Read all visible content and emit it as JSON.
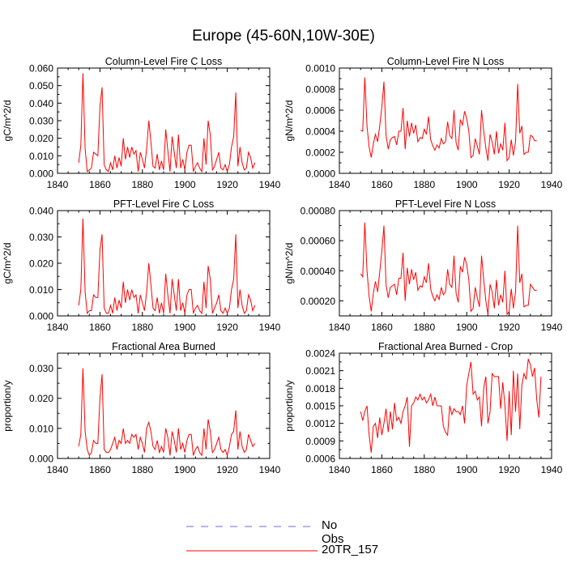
{
  "main_title": "Europe (45-60N,10W-30E)",
  "legend": {
    "entries": [
      {
        "label": "No Obs",
        "color": "#6a6ae0",
        "style": "dashed"
      },
      {
        "label": "20TR_157",
        "color": "#ff0000",
        "style": "solid"
      }
    ]
  },
  "colors": {
    "series": "#ff0000",
    "axis": "#000000",
    "obs": "#6a6ae0"
  },
  "chart_data": [
    {
      "type": "line",
      "title": "Column-Level Fire C Loss",
      "ylabel": "gC/m^2/d",
      "xlim": [
        1840,
        1940
      ],
      "ylim": [
        0,
        0.06
      ],
      "xticks": [
        1840,
        1860,
        1880,
        1900,
        1920,
        1940
      ],
      "xtick_labels": [
        "1840",
        "1860",
        "1880",
        "1900",
        "1920",
        "1940"
      ],
      "yticks": [
        0,
        0.01,
        0.02,
        0.03,
        0.04,
        0.05,
        0.06
      ],
      "ytick_labels": [
        "0.000",
        "0.010",
        "0.020",
        "0.030",
        "0.040",
        "0.050",
        "0.060"
      ],
      "series": [
        {
          "name": "20TR_157",
          "x0": 1850,
          "values": [
            0.006,
            0.016,
            0.057,
            0.014,
            0.001,
            0.002,
            0.003,
            0.012,
            0.011,
            0.01,
            0.038,
            0.049,
            0.005,
            0.002,
            0.001,
            0.006,
            0.002,
            0.01,
            0.003,
            0.009,
            0.004,
            0.02,
            0.008,
            0.015,
            0.009,
            0.015,
            0.011,
            0.013,
            0.001,
            0.012,
            0.008,
            0.003,
            0.014,
            0.03,
            0.018,
            0.004,
            0.003,
            0.011,
            0.002,
            0.007,
            0.002,
            0.025,
            0.013,
            0.001,
            0.021,
            0.012,
            0.003,
            0.022,
            0.003,
            0.008,
            0.002,
            0.012,
            0.016,
            0.016,
            0.001,
            0.004,
            0.006,
            0.003,
            0.001,
            0.02,
            0.005,
            0.03,
            0.022,
            0.002,
            0.004,
            0.008,
            0.012,
            0.003,
            0.002,
            0.005,
            0.001,
            0.005,
            0.015,
            0.021,
            0.046,
            0.004,
            0.015,
            0.006,
            0.002,
            0.003,
            0.012,
            0.009,
            0.003,
            0.006
          ]
        }
      ]
    },
    {
      "type": "line",
      "title": "Column-Level Fire N Loss",
      "ylabel": "gN/m^2/d",
      "xlim": [
        1840,
        1940
      ],
      "ylim": [
        0,
        0.001
      ],
      "xticks": [
        1840,
        1860,
        1880,
        1900,
        1920,
        1940
      ],
      "xtick_labels": [
        "1840",
        "1860",
        "1880",
        "1900",
        "1920",
        "1940"
      ],
      "yticks": [
        0,
        0.0002,
        0.0004,
        0.0006,
        0.0008,
        0.001
      ],
      "ytick_labels": [
        "0.0000",
        "0.0002",
        "0.0004",
        "0.0006",
        "0.0008",
        "0.0010"
      ],
      "series": [
        {
          "name": "20TR_157",
          "x0": 1850,
          "values": [
            0.00041,
            0.0004,
            0.00091,
            0.00045,
            0.00025,
            0.00015,
            0.00028,
            0.00037,
            0.0003,
            0.00045,
            0.00063,
            0.00087,
            0.00036,
            0.00023,
            0.00032,
            0.00034,
            0.00035,
            0.00027,
            0.0004,
            0.0004,
            0.00062,
            0.00023,
            0.0005,
            0.00035,
            0.00048,
            0.00038,
            0.00046,
            0.0003,
            0.00034,
            0.00033,
            0.00042,
            0.00037,
            0.00054,
            0.00032,
            0.00026,
            0.00022,
            0.00027,
            0.00024,
            0.00033,
            0.00028,
            0.0003,
            0.00049,
            0.00036,
            0.00033,
            0.0006,
            0.00029,
            0.00022,
            0.00051,
            0.00046,
            0.00059,
            0.00052,
            0.0004,
            0.00015,
            0.00017,
            0.00033,
            0.00026,
            0.00018,
            0.0006,
            0.0004,
            0.00024,
            0.00012,
            0.00037,
            0.0003,
            0.00018,
            0.0004,
            0.00019,
            0.00028,
            0.00022,
            0.00048,
            0.00012,
            0.00015,
            0.00032,
            0.00017,
            0.0003,
            0.00085,
            0.00038,
            0.00045,
            0.00018,
            0.0002,
            0.0002,
            0.00036,
            0.00035,
            0.00031,
            0.00031
          ]
        }
      ]
    },
    {
      "type": "line",
      "title": "PFT-Level Fire C Loss",
      "ylabel": "gC/m^2/d",
      "xlim": [
        1840,
        1940
      ],
      "ylim": [
        0,
        0.04
      ],
      "xticks": [
        1840,
        1860,
        1880,
        1900,
        1920,
        1940
      ],
      "xtick_labels": [
        "1840",
        "1860",
        "1880",
        "1900",
        "1920",
        "1940"
      ],
      "yticks": [
        0,
        0.01,
        0.02,
        0.03,
        0.04
      ],
      "ytick_labels": [
        "0.000",
        "0.010",
        "0.020",
        "0.030",
        "0.040"
      ],
      "series": [
        {
          "name": "20TR_157",
          "x0": 1850,
          "values": [
            0.004,
            0.01,
            0.037,
            0.009,
            0.001,
            0.002,
            0.002,
            0.008,
            0.007,
            0.007,
            0.025,
            0.031,
            0.003,
            0.001,
            0.001,
            0.004,
            0.001,
            0.007,
            0.002,
            0.006,
            0.003,
            0.013,
            0.005,
            0.01,
            0.006,
            0.01,
            0.007,
            0.008,
            0.001,
            0.008,
            0.005,
            0.002,
            0.009,
            0.02,
            0.012,
            0.003,
            0.002,
            0.007,
            0.001,
            0.005,
            0.001,
            0.016,
            0.008,
            0.001,
            0.014,
            0.008,
            0.002,
            0.014,
            0.002,
            0.005,
            0.001,
            0.008,
            0.01,
            0.01,
            0.001,
            0.003,
            0.004,
            0.002,
            0.001,
            0.013,
            0.003,
            0.019,
            0.014,
            0.001,
            0.003,
            0.005,
            0.008,
            0.002,
            0.001,
            0.003,
            0.001,
            0.003,
            0.01,
            0.014,
            0.031,
            0.003,
            0.01,
            0.004,
            0.001,
            0.002,
            0.008,
            0.006,
            0.002,
            0.004
          ]
        }
      ]
    },
    {
      "type": "line",
      "title": "PFT-Level Fire N Loss",
      "ylabel": "gN/m^2/d",
      "xlim": [
        1840,
        1940
      ],
      "ylim": [
        0.0001,
        0.0008
      ],
      "xticks": [
        1840,
        1860,
        1880,
        1900,
        1920,
        1940
      ],
      "xtick_labels": [
        "1840",
        "1860",
        "1880",
        "1900",
        "1920",
        "1940"
      ],
      "yticks": [
        0.0002,
        0.0004,
        0.0006,
        0.0008
      ],
      "ytick_labels": [
        "0.00020",
        "0.00040",
        "0.00060",
        "0.00080"
      ],
      "series": [
        {
          "name": "20TR_157",
          "x0": 1850,
          "values": [
            0.00038,
            0.00036,
            0.00072,
            0.0004,
            0.00023,
            0.00013,
            0.00025,
            0.00033,
            0.00026,
            0.00039,
            0.00053,
            0.0007,
            0.00031,
            0.00022,
            0.00029,
            0.0003,
            0.00031,
            0.00024,
            0.00035,
            0.00035,
            0.00052,
            0.0002,
            0.00042,
            0.00031,
            0.00041,
            0.00034,
            0.00039,
            0.00027,
            0.0003,
            0.00029,
            0.00036,
            0.00032,
            0.00045,
            0.00028,
            0.00023,
            0.0002,
            0.00024,
            0.00021,
            0.00029,
            0.00024,
            0.00026,
            0.00041,
            0.00031,
            0.00029,
            0.0005,
            0.00025,
            0.00019,
            0.00043,
            0.00039,
            0.00049,
            0.00044,
            0.00034,
            0.00013,
            0.00015,
            0.00029,
            0.00022,
            0.00016,
            0.0005,
            0.00034,
            0.0002,
            0.00011,
            0.00031,
            0.00026,
            0.00015,
            0.00034,
            0.00017,
            0.00024,
            0.00019,
            0.0004,
            0.00011,
            0.00013,
            0.00028,
            0.00015,
            0.00026,
            0.0007,
            0.00032,
            0.00038,
            0.00016,
            0.00017,
            0.00017,
            0.00031,
            0.00029,
            0.00027,
            0.00027
          ]
        }
      ]
    },
    {
      "type": "line",
      "title": "Fractional Area Burned",
      "ylabel": "proportion/y",
      "xlim": [
        1840,
        1940
      ],
      "ylim": [
        0,
        0.035
      ],
      "xticks": [
        1840,
        1860,
        1880,
        1900,
        1920,
        1940
      ],
      "xtick_labels": [
        "1840",
        "1860",
        "1880",
        "1900",
        "1920",
        "1940"
      ],
      "yticks": [
        0,
        0.01,
        0.02,
        0.03
      ],
      "ytick_labels": [
        "0.000",
        "0.010",
        "0.020",
        "0.030"
      ],
      "series": [
        {
          "name": "20TR_157",
          "x0": 1850,
          "values": [
            0.004,
            0.008,
            0.03,
            0.009,
            0.003,
            0.001,
            0.002,
            0.006,
            0.005,
            0.005,
            0.02,
            0.028,
            0.003,
            0.002,
            0.002,
            0.003,
            0.005,
            0.007,
            0.003,
            0.006,
            0.005,
            0.01,
            0.005,
            0.006,
            0.005,
            0.008,
            0.007,
            0.008,
            0.003,
            0.007,
            0.005,
            0.002,
            0.01,
            0.012,
            0.009,
            0.004,
            0.003,
            0.006,
            0.002,
            0.004,
            0.002,
            0.01,
            0.007,
            0.001,
            0.009,
            0.006,
            0.002,
            0.01,
            0.003,
            0.005,
            0.002,
            0.006,
            0.008,
            0.008,
            0.001,
            0.003,
            0.004,
            0.002,
            0.001,
            0.01,
            0.003,
            0.013,
            0.009,
            0.002,
            0.003,
            0.005,
            0.007,
            0.003,
            0.002,
            0.003,
            0.001,
            0.004,
            0.008,
            0.009,
            0.016,
            0.003,
            0.009,
            0.004,
            0.002,
            0.003,
            0.008,
            0.006,
            0.004,
            0.005
          ]
        }
      ]
    },
    {
      "type": "line",
      "title": "Fractional Area Burned - Crop",
      "ylabel": "proportion/y",
      "xlim": [
        1840,
        1940
      ],
      "ylim": [
        0.0006,
        0.0024
      ],
      "xticks": [
        1840,
        1860,
        1880,
        1900,
        1920,
        1940
      ],
      "xtick_labels": [
        "1840",
        "1860",
        "1880",
        "1900",
        "1920",
        "1940"
      ],
      "yticks": [
        0.0006,
        0.0009,
        0.0012,
        0.0015,
        0.0018,
        0.0021,
        0.0024
      ],
      "ytick_labels": [
        "0.0006",
        "0.0009",
        "0.0012",
        "0.0015",
        "0.0018",
        "0.0021",
        "0.0024"
      ],
      "series": [
        {
          "name": "20TR_157",
          "x0": 1850,
          "values": [
            0.0014,
            0.00125,
            0.0014,
            0.0015,
            0.001,
            0.0007,
            0.00115,
            0.0012,
            0.00095,
            0.0013,
            0.001,
            0.0012,
            0.00145,
            0.00105,
            0.0014,
            0.0011,
            0.00155,
            0.00125,
            0.0013,
            0.0012,
            0.0014,
            0.0015,
            0.00165,
            0.0008,
            0.0015,
            0.00155,
            0.00165,
            0.0016,
            0.0017,
            0.0016,
            0.00165,
            0.00155,
            0.0016,
            0.0017,
            0.0015,
            0.00165,
            0.0015,
            0.0015,
            0.0015,
            0.00115,
            0.00105,
            0.001,
            0.0015,
            0.00135,
            0.00145,
            0.0014,
            0.0014,
            0.00135,
            0.0015,
            0.0012,
            0.00185,
            0.00205,
            0.00225,
            0.0017,
            0.00175,
            0.0016,
            0.00165,
            0.00115,
            0.0018,
            0.002,
            0.0012,
            0.0014,
            0.00205,
            0.002,
            0.002,
            0.002,
            0.00145,
            0.0019,
            0.0015,
            0.0009,
            0.00175,
            0.001,
            0.0021,
            0.0014,
            0.00205,
            0.0011,
            0.00185,
            0.00205,
            0.00195,
            0.0023,
            0.0022,
            0.002,
            0.00215,
            0.0016,
            0.0013,
            0.002
          ]
        }
      ]
    }
  ]
}
